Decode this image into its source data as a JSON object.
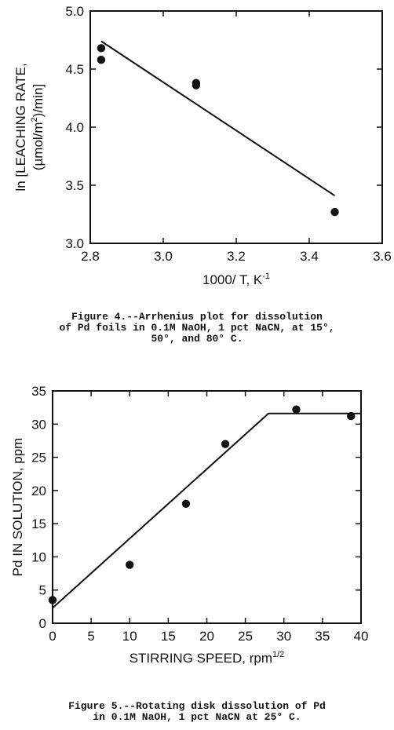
{
  "chart_data": [
    {
      "type": "scatter",
      "title": "",
      "xlabel": "1000/ T, K",
      "xlabel_sup": "-1",
      "ylabel_line1": "ln [LEACHING RATE,",
      "ylabel_line2": "(µmol/m",
      "ylabel_line2_sup": "2",
      "ylabel_line2_end": ")/min]",
      "xlim": [
        2.8,
        3.6
      ],
      "ylim": [
        3.0,
        5.0
      ],
      "xticks": [
        "2.8",
        "3.0",
        "3.2",
        "3.4",
        "3.6"
      ],
      "yticks": [
        "3.0",
        "3.5",
        "4.0",
        "4.5",
        "5.0"
      ],
      "points": [
        {
          "x": 2.83,
          "y": 4.68
        },
        {
          "x": 2.83,
          "y": 4.58
        },
        {
          "x": 3.09,
          "y": 4.38
        },
        {
          "x": 3.09,
          "y": 4.36
        },
        {
          "x": 3.47,
          "y": 3.27
        }
      ],
      "fit_line": [
        {
          "x": 2.83,
          "y": 4.74
        },
        {
          "x": 3.47,
          "y": 3.41
        }
      ],
      "grid": false
    },
    {
      "type": "scatter",
      "title": "",
      "xlabel": "STIRRING SPEED, rpm",
      "xlabel_sup": "1/2",
      "ylabel": "Pd IN SOLUTION, ppm",
      "xlim": [
        0,
        40
      ],
      "ylim": [
        0,
        35
      ],
      "xticks": [
        "0",
        "5",
        "10",
        "15",
        "20",
        "25",
        "30",
        "35",
        "40"
      ],
      "yticks": [
        "0",
        "5",
        "10",
        "15",
        "20",
        "25",
        "30",
        "35"
      ],
      "points": [
        {
          "x": 0,
          "y": 3.5
        },
        {
          "x": 10,
          "y": 8.8
        },
        {
          "x": 17.3,
          "y": 18
        },
        {
          "x": 22.4,
          "y": 27
        },
        {
          "x": 31.6,
          "y": 32.2
        },
        {
          "x": 38.7,
          "y": 31.2
        }
      ],
      "fit_line": [
        {
          "x": 0,
          "y": 2.3
        },
        {
          "x": 28,
          "y": 31.6
        },
        {
          "x": 40,
          "y": 31.6
        }
      ],
      "grid": false
    }
  ],
  "captions": {
    "fig4": "Figure 4.--Arrhenius plot for dissolution\nof Pd foils in 0.1M NaOH, 1 pct NaCN, at 15°,\n50°, and 80° C.",
    "fig5": "Figure 5.--Rotating disk dissolution of Pd\nin 0.1M NaOH, 1 pct NaCN at 25° C."
  }
}
